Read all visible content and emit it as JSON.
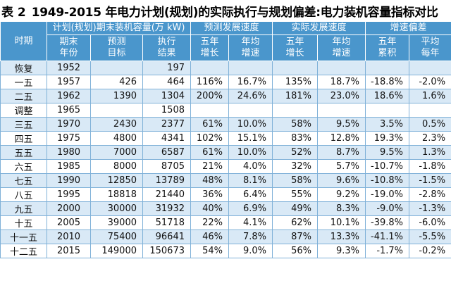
{
  "title": {
    "label": "表 2",
    "text": "1949-2015 年电力计划(规划)的实际执行与规划偏差:电力装机容量指标对比"
  },
  "header": {
    "period": "时期",
    "group_plan": "计划(规划)期末装机容量(万 kW)",
    "group_forecast": "预测发展速度",
    "group_actual": "实际发展速度",
    "group_deviation": "增速偏差",
    "sub": [
      "期末\n年份",
      "预测\n目标",
      "执行\n结果",
      "五年\n增长",
      "年均\n增速",
      "五年\n增长",
      "年均\n增速",
      "五年\n累积",
      "平均\n每年"
    ]
  },
  "rows": [
    [
      "恢复",
      "1952",
      "",
      "197",
      "",
      "",
      "",
      "",
      "",
      ""
    ],
    [
      "一五",
      "1957",
      "426",
      "464",
      "116%",
      "16.7%",
      "135%",
      "18.7%",
      "-18.8%",
      "-2.0%"
    ],
    [
      "二五",
      "1962",
      "1390",
      "1304",
      "200%",
      "24.6%",
      "181%",
      "23.0%",
      "18.6%",
      "1.6%"
    ],
    [
      "调整",
      "1965",
      "",
      "1508",
      "",
      "",
      "",
      "",
      "",
      ""
    ],
    [
      "三五",
      "1970",
      "2430",
      "2377",
      "61%",
      "10.0%",
      "58%",
      "9.5%",
      "3.5%",
      "0.5%"
    ],
    [
      "四五",
      "1975",
      "4800",
      "4341",
      "102%",
      "15.1%",
      "83%",
      "12.8%",
      "19.3%",
      "2.3%"
    ],
    [
      "五五",
      "1980",
      "7000",
      "6587",
      "61%",
      "10.0%",
      "52%",
      "8.7%",
      "9.5%",
      "1.3%"
    ],
    [
      "六五",
      "1985",
      "8000",
      "8705",
      "21%",
      "4.0%",
      "32%",
      "5.7%",
      "-10.7%",
      "-1.8%"
    ],
    [
      "七五",
      "1990",
      "12850",
      "13789",
      "48%",
      "8.1%",
      "58%",
      "9.6%",
      "-10.8%",
      "-1.5%"
    ],
    [
      "八五",
      "1995",
      "18818",
      "21440",
      "36%",
      "6.4%",
      "55%",
      "9.2%",
      "-19.0%",
      "-2.8%"
    ],
    [
      "九五",
      "2000",
      "30000",
      "31932",
      "40%",
      "6.9%",
      "49%",
      "8.3%",
      "-9.0%",
      "-1.3%"
    ],
    [
      "十五",
      "2005",
      "39000",
      "51718",
      "22%",
      "4.1%",
      "62%",
      "10.1%",
      "-39.8%",
      "-6.0%"
    ],
    [
      "十一五",
      "2010",
      "75400",
      "96641",
      "46%",
      "7.8%",
      "87%",
      "13.3%",
      "-41.1%",
      "-5.5%"
    ],
    [
      "十二五",
      "2015",
      "149000",
      "150673",
      "54%",
      "9.0%",
      "56%",
      "9.3%",
      "-1.7%",
      "-0.2%"
    ]
  ]
}
